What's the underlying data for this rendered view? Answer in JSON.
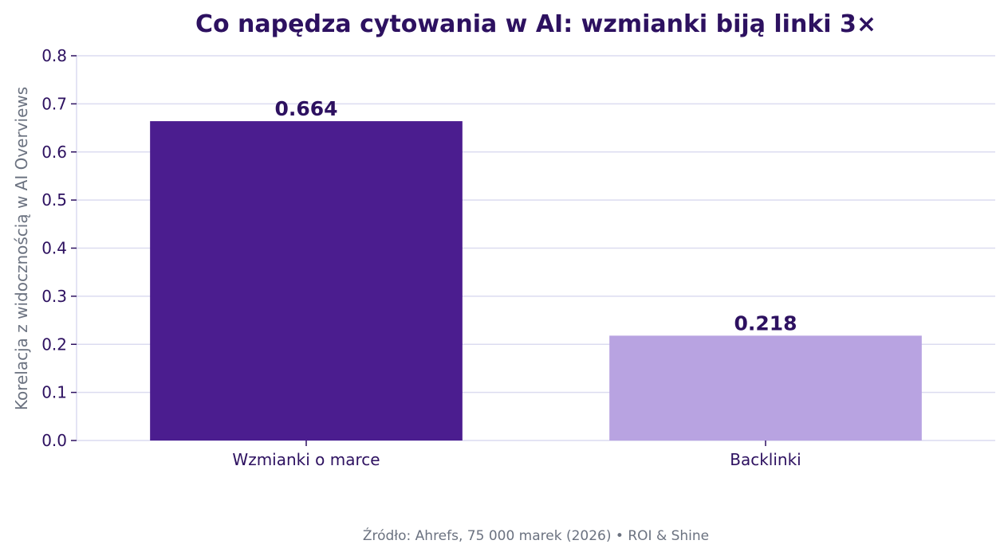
{
  "chart_data": {
    "type": "bar",
    "title": "Co napędza cytowania w AI: wzmianki biją linki 3×",
    "xlabel": "",
    "ylabel": "Korelacja z widocznością w AI Overviews",
    "categories": [
      "Wzmianki o marce",
      "Backlinki"
    ],
    "values": [
      0.664,
      0.218
    ],
    "value_labels": [
      "0.664",
      "0.218"
    ],
    "colors": [
      "#4b1d8f",
      "#b8a3e1"
    ],
    "ylim": [
      0,
      0.8
    ],
    "yticks": [
      "0.0",
      "0.1",
      "0.2",
      "0.3",
      "0.4",
      "0.5",
      "0.6",
      "0.7",
      "0.8"
    ],
    "grid": true,
    "source": "Źródło: Ahrefs, 75 000 marek (2026) • ROI & Shine"
  }
}
